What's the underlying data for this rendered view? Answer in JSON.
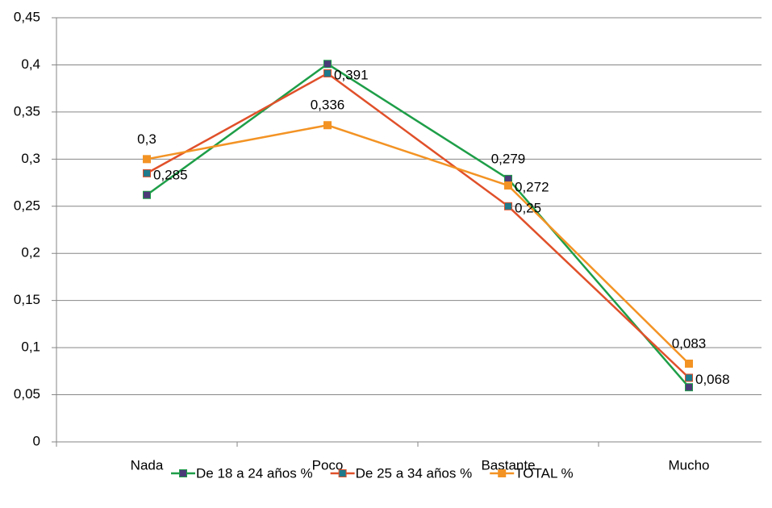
{
  "chart_data": {
    "type": "line",
    "categories": [
      "Nada",
      "Poco",
      "Bastante",
      "Mucho"
    ],
    "series": [
      {
        "name": "De 18 a 24 años %",
        "color": "#1e9e48",
        "marker_color": "#4b3a78",
        "values": [
          0.262,
          0.401,
          0.279,
          0.058
        ],
        "value_labels": [
          null,
          null,
          "0,279",
          null
        ]
      },
      {
        "name": "De 25 a 34 años %",
        "color": "#e0502a",
        "marker_color": "#1f7a8c",
        "values": [
          0.285,
          0.391,
          0.25,
          0.068
        ],
        "value_labels": [
          "0,285",
          "0,391",
          "0,25",
          "0,068"
        ]
      },
      {
        "name": "TOTAL %",
        "color": "#f39324",
        "marker_color": "#f39324",
        "values": [
          0.3,
          0.336,
          0.272,
          0.083
        ],
        "value_labels": [
          "0,3",
          "0,336",
          "0,272",
          "0,083"
        ]
      }
    ],
    "ylim": [
      0,
      0.45
    ],
    "yticks": [
      0,
      {
        "value": 0.05,
        "label": "0,05"
      },
      {
        "value": 0.1,
        "label": "0,1"
      },
      {
        "value": 0.15,
        "label": "0,15"
      },
      {
        "value": 0.2,
        "label": "0,2"
      },
      {
        "value": 0.25,
        "label": "0,25"
      },
      {
        "value": 0.3,
        "label": "0,3"
      },
      {
        "value": 0.35,
        "label": "0,35"
      },
      {
        "value": 0.4,
        "label": "0,4"
      },
      {
        "value": 0.45,
        "label": "0,45"
      }
    ],
    "grid": true,
    "legend": "bottom"
  }
}
